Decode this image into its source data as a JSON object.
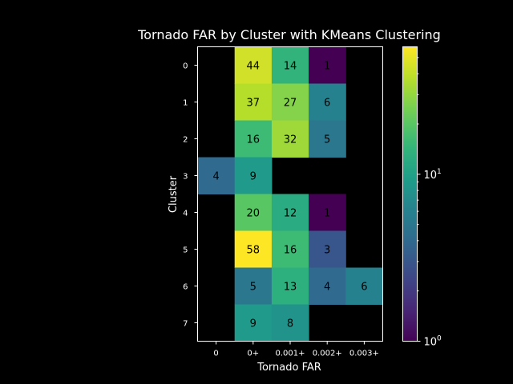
{
  "chart_data": {
    "type": "heatmap",
    "title": "Tornado FAR by Cluster with KMeans Clustering",
    "xlabel": "Tornado FAR",
    "ylabel": "Cluster",
    "x_categories": [
      "0",
      "0+",
      "0.001+",
      "0.002+",
      "0.003+"
    ],
    "y_categories": [
      "0",
      "1",
      "2",
      "3",
      "4",
      "5",
      "6",
      "7"
    ],
    "values": [
      [
        null,
        44,
        14,
        1,
        null
      ],
      [
        null,
        37,
        27,
        6,
        null
      ],
      [
        null,
        16,
        32,
        5,
        null
      ],
      [
        4,
        9,
        null,
        null,
        null
      ],
      [
        null,
        20,
        12,
        1,
        null
      ],
      [
        null,
        58,
        16,
        3,
        null
      ],
      [
        null,
        5,
        13,
        4,
        6
      ],
      [
        null,
        9,
        8,
        null,
        null
      ]
    ],
    "colormap": "viridis",
    "color_scale": "log",
    "color_range": [
      1,
      58
    ],
    "colorbar_ticks": [
      {
        "value": 1,
        "base": "10",
        "exp": "0"
      },
      {
        "value": 10,
        "base": "10",
        "exp": "1"
      }
    ],
    "colors": {
      "background": "#000000",
      "text": "#ffffff",
      "cell_text": "#000000"
    }
  }
}
